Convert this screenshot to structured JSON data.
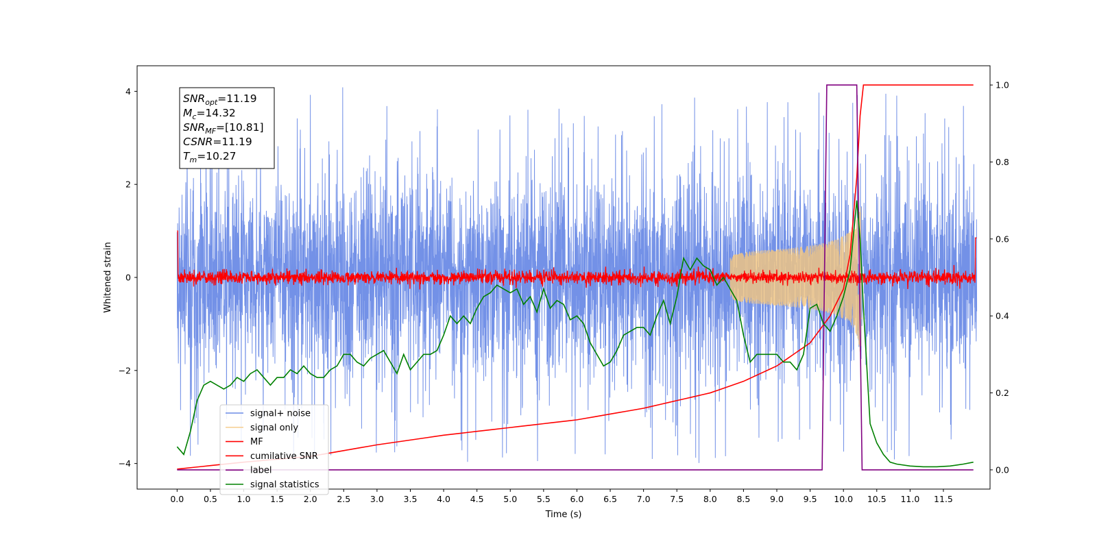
{
  "chart_data": {
    "type": "line",
    "xlabel": "Time (s)",
    "ylabel": "Whitened strain",
    "xlim": [
      -0.6,
      12.2
    ],
    "ylim_left": [
      -4.55,
      4.55
    ],
    "ylim_right": [
      -0.05,
      1.05
    ],
    "x_ticks": [
      "0.0",
      "0.5",
      "1.0",
      "1.5",
      "2.0",
      "2.5",
      "3.0",
      "3.5",
      "4.0",
      "4.5",
      "5.0",
      "5.5",
      "6.0",
      "6.5",
      "7.0",
      "7.5",
      "8.0",
      "8.5",
      "9.0",
      "9.5",
      "10.0",
      "10.5",
      "11.0",
      "11.5"
    ],
    "y_ticks_left": [
      "-4",
      "-2",
      "0",
      "2",
      "4"
    ],
    "y_ticks_right": [
      "0.0",
      "0.2",
      "0.4",
      "0.6",
      "0.8",
      "1.0"
    ],
    "grid": false,
    "legend_position": "lower-left",
    "series": [
      {
        "name": "signal+ noise",
        "color": "#6b8be6",
        "axis": "left",
        "kind": "noise",
        "x_range": [
          0,
          12
        ],
        "amplitude_approx": 4.1
      },
      {
        "name": "signal only",
        "color": "#f5c77e",
        "axis": "left",
        "kind": "chirp",
        "x_range": [
          0,
          10.27
        ],
        "peak_amplitude": 1.6
      },
      {
        "name": "MF",
        "color": "#ff0000",
        "axis": "left",
        "kind": "matched-filter output",
        "x_range": [
          0,
          12
        ],
        "level_approx": 0.0,
        "jitter_approx": 0.2
      },
      {
        "name": "cumilative SNR",
        "color": "#ff0000",
        "axis": "right",
        "x": [
          0.0,
          1.0,
          2.0,
          3.0,
          4.0,
          5.0,
          6.0,
          7.0,
          8.0,
          8.5,
          9.0,
          9.5,
          9.8,
          10.0,
          10.1,
          10.2,
          10.25,
          10.3,
          11.95
        ],
        "y": [
          0.002,
          0.02,
          0.035,
          0.065,
          0.09,
          0.11,
          0.13,
          0.16,
          0.2,
          0.23,
          0.27,
          0.33,
          0.4,
          0.47,
          0.56,
          0.76,
          0.92,
          1.0,
          1.0
        ]
      },
      {
        "name": "label",
        "color": "#800080",
        "axis": "right",
        "x": [
          0.0,
          9.68,
          9.75,
          10.2,
          10.28,
          11.95
        ],
        "y": [
          0.0,
          0.0,
          1.0,
          1.0,
          0.0,
          0.0
        ]
      },
      {
        "name": "signal statistics",
        "color": "#008000",
        "axis": "right",
        "x": [
          0.0,
          0.1,
          0.2,
          0.3,
          0.4,
          0.5,
          0.6,
          0.7,
          0.8,
          0.9,
          1.0,
          1.1,
          1.2,
          1.3,
          1.4,
          1.5,
          1.6,
          1.7,
          1.8,
          1.9,
          2.0,
          2.1,
          2.2,
          2.3,
          2.4,
          2.5,
          2.6,
          2.7,
          2.8,
          2.9,
          3.0,
          3.1,
          3.2,
          3.3,
          3.4,
          3.5,
          3.6,
          3.7,
          3.8,
          3.9,
          4.0,
          4.1,
          4.2,
          4.3,
          4.4,
          4.5,
          4.6,
          4.7,
          4.8,
          4.9,
          5.0,
          5.1,
          5.2,
          5.3,
          5.4,
          5.5,
          5.6,
          5.7,
          5.8,
          5.9,
          6.0,
          6.1,
          6.2,
          6.3,
          6.4,
          6.5,
          6.6,
          6.7,
          6.8,
          6.9,
          7.0,
          7.1,
          7.2,
          7.3,
          7.4,
          7.5,
          7.6,
          7.7,
          7.8,
          7.9,
          8.0,
          8.1,
          8.2,
          8.3,
          8.4,
          8.5,
          8.6,
          8.7,
          8.8,
          8.9,
          9.0,
          9.1,
          9.2,
          9.3,
          9.4,
          9.5,
          9.6,
          9.7,
          9.8,
          9.9,
          10.0,
          10.1,
          10.2,
          10.25,
          10.3,
          10.4,
          10.5,
          10.6,
          10.7,
          10.8,
          11.0,
          11.2,
          11.4,
          11.6,
          11.8,
          11.95
        ],
        "y": [
          0.06,
          0.04,
          0.1,
          0.18,
          0.22,
          0.23,
          0.22,
          0.21,
          0.22,
          0.24,
          0.23,
          0.25,
          0.26,
          0.24,
          0.22,
          0.24,
          0.24,
          0.26,
          0.25,
          0.27,
          0.25,
          0.24,
          0.24,
          0.26,
          0.27,
          0.3,
          0.3,
          0.28,
          0.27,
          0.29,
          0.3,
          0.31,
          0.28,
          0.25,
          0.3,
          0.26,
          0.28,
          0.3,
          0.3,
          0.31,
          0.35,
          0.4,
          0.38,
          0.4,
          0.38,
          0.42,
          0.45,
          0.46,
          0.48,
          0.47,
          0.46,
          0.47,
          0.43,
          0.45,
          0.41,
          0.47,
          0.42,
          0.44,
          0.43,
          0.39,
          0.4,
          0.38,
          0.33,
          0.3,
          0.27,
          0.28,
          0.31,
          0.35,
          0.36,
          0.37,
          0.37,
          0.35,
          0.4,
          0.44,
          0.38,
          0.45,
          0.55,
          0.52,
          0.55,
          0.53,
          0.52,
          0.48,
          0.5,
          0.47,
          0.44,
          0.35,
          0.28,
          0.3,
          0.3,
          0.3,
          0.3,
          0.28,
          0.28,
          0.26,
          0.3,
          0.42,
          0.43,
          0.38,
          0.36,
          0.4,
          0.45,
          0.52,
          0.7,
          0.6,
          0.42,
          0.12,
          0.07,
          0.04,
          0.02,
          0.015,
          0.01,
          0.008,
          0.008,
          0.01,
          0.015,
          0.02
        ]
      }
    ],
    "annotation": {
      "lines": [
        {
          "sym": "SNR",
          "sub": "opt",
          "value": "=11.19"
        },
        {
          "sym": "M",
          "sub": "c",
          "value": "=14.32"
        },
        {
          "sym": "SNR",
          "sub": "MF",
          "value": "=[10.81]"
        },
        {
          "sym": "CSNR",
          "sub": "",
          "value": "=11.19"
        },
        {
          "sym": "T",
          "sub": "m",
          "value": "=10.27"
        }
      ]
    }
  }
}
